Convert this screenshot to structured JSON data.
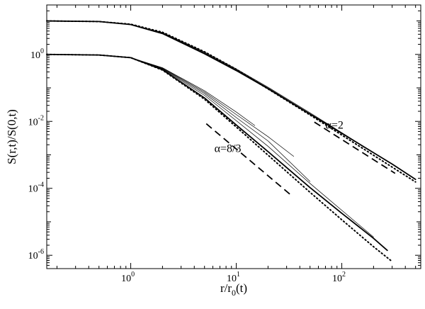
{
  "chart_data": {
    "type": "line",
    "xlabel": "r/r",
    "xlabel_sub": "0",
    "xlabel_tail": "(t)",
    "ylabel": "S(r,t)/S(0,t)",
    "xscale": "log",
    "yscale": "log",
    "xlim": [
      0.16,
      560
    ],
    "ylim": [
      4e-07,
      30
    ],
    "grid": false,
    "x_ticks": [
      {
        "base": "10",
        "exp": "0",
        "value": 1
      },
      {
        "base": "10",
        "exp": "1",
        "value": 10
      },
      {
        "base": "10",
        "exp": "2",
        "value": 100
      }
    ],
    "y_ticks": [
      {
        "base": "10",
        "exp": "0",
        "value": 1
      },
      {
        "base": "10",
        "exp": "-2",
        "value": 0.01
      },
      {
        "base": "10",
        "exp": "-4",
        "value": 0.0001
      },
      {
        "base": "10",
        "exp": "-6",
        "value": 1e-06
      }
    ],
    "annotations": [
      {
        "text": "α=2",
        "x": 70,
        "y": 0.006
      },
      {
        "text": "α=8/3",
        "x": 6.2,
        "y": 0.0012
      }
    ],
    "series": [
      {
        "group": "upper",
        "style": "solid-thick",
        "points": [
          [
            0.16,
            10
          ],
          [
            0.5,
            9.6
          ],
          [
            1,
            7.8
          ],
          [
            2,
            4.2
          ],
          [
            5,
            1.05
          ],
          [
            10,
            0.33
          ],
          [
            20,
            0.095
          ],
          [
            50,
            0.0165
          ],
          [
            100,
            0.0044
          ],
          [
            300,
            0.00053
          ],
          [
            500,
            0.000185
          ]
        ]
      },
      {
        "group": "upper",
        "style": "solid-thin",
        "points": [
          [
            0.16,
            10
          ],
          [
            0.5,
            9.6
          ],
          [
            1,
            7.8
          ],
          [
            2,
            4.4
          ],
          [
            5,
            1.12
          ],
          [
            10,
            0.35
          ],
          [
            20,
            0.1
          ],
          [
            50,
            0.017
          ],
          [
            100,
            0.0045
          ],
          [
            300,
            0.00052
          ]
        ]
      },
      {
        "group": "upper",
        "style": "solid-thin",
        "points": [
          [
            0.16,
            10
          ],
          [
            0.5,
            9.6
          ],
          [
            1,
            7.8
          ],
          [
            2,
            4.5
          ],
          [
            5,
            1.18
          ],
          [
            10,
            0.37
          ],
          [
            20,
            0.105
          ],
          [
            50,
            0.018
          ],
          [
            100,
            0.0046
          ],
          [
            250,
            0.00075
          ]
        ]
      },
      {
        "group": "upper",
        "style": "dotted",
        "points": [
          [
            0.16,
            10
          ],
          [
            0.5,
            9.6
          ],
          [
            1,
            8
          ],
          [
            2,
            4.6
          ],
          [
            5,
            1.2
          ],
          [
            10,
            0.36
          ],
          [
            20,
            0.093
          ],
          [
            50,
            0.0155
          ],
          [
            100,
            0.0039
          ],
          [
            300,
            0.00043
          ],
          [
            500,
            0.000155
          ]
        ]
      },
      {
        "group": "lower",
        "style": "solid-thick",
        "points": [
          [
            0.16,
            1
          ],
          [
            0.5,
            0.96
          ],
          [
            1,
            0.8
          ],
          [
            2,
            0.35
          ],
          [
            5,
            0.05
          ],
          [
            10,
            0.0078
          ],
          [
            20,
            0.00125
          ],
          [
            50,
            0.000105
          ],
          [
            100,
            1.8e-05
          ],
          [
            200,
            3.2e-06
          ],
          [
            270,
            1.4e-06
          ]
        ]
      },
      {
        "group": "lower",
        "style": "solid-thin",
        "points": [
          [
            0.16,
            1
          ],
          [
            0.5,
            0.96
          ],
          [
            1,
            0.8
          ],
          [
            2,
            0.37
          ],
          [
            5,
            0.06
          ],
          [
            10,
            0.0105
          ],
          [
            20,
            0.0018
          ],
          [
            50,
            0.00014
          ],
          [
            100,
            2.2e-05
          ],
          [
            200,
            3.5e-06
          ]
        ]
      },
      {
        "group": "lower",
        "style": "solid-thin",
        "points": [
          [
            0.16,
            1
          ],
          [
            0.5,
            0.96
          ],
          [
            1,
            0.8
          ],
          [
            2,
            0.38
          ],
          [
            5,
            0.068
          ],
          [
            10,
            0.013
          ],
          [
            20,
            0.0026
          ],
          [
            50,
            0.00016
          ]
        ]
      },
      {
        "group": "lower",
        "style": "solid-thin",
        "points": [
          [
            0.16,
            1
          ],
          [
            0.5,
            0.96
          ],
          [
            1,
            0.8
          ],
          [
            2,
            0.39
          ],
          [
            5,
            0.075
          ],
          [
            10,
            0.016
          ],
          [
            20,
            0.0035
          ],
          [
            35,
            0.0009
          ]
        ]
      },
      {
        "group": "lower",
        "style": "solid-thin",
        "points": [
          [
            0.16,
            1
          ],
          [
            0.5,
            0.96
          ],
          [
            1,
            0.8
          ],
          [
            2,
            0.4
          ],
          [
            5,
            0.082
          ],
          [
            10,
            0.019
          ],
          [
            15,
            0.0075
          ]
        ]
      },
      {
        "group": "lower",
        "style": "dotted",
        "points": [
          [
            0.16,
            1
          ],
          [
            0.5,
            0.96
          ],
          [
            1,
            0.8
          ],
          [
            2,
            0.34
          ],
          [
            5,
            0.046
          ],
          [
            10,
            0.0068
          ],
          [
            20,
            0.00098
          ],
          [
            50,
            7.6e-05
          ],
          [
            100,
            1.15e-05
          ],
          [
            200,
            1.8e-06
          ],
          [
            300,
            6.5e-07
          ]
        ]
      }
    ],
    "reference_lines": [
      {
        "label": "α=2",
        "style": "dashed",
        "points": [
          [
            55,
            0.0095
          ],
          [
            320,
            0.00028
          ]
        ]
      },
      {
        "label": "α=8/3",
        "style": "dashed",
        "points": [
          [
            5.2,
            0.0085
          ],
          [
            34,
            5.8e-05
          ]
        ]
      }
    ]
  }
}
